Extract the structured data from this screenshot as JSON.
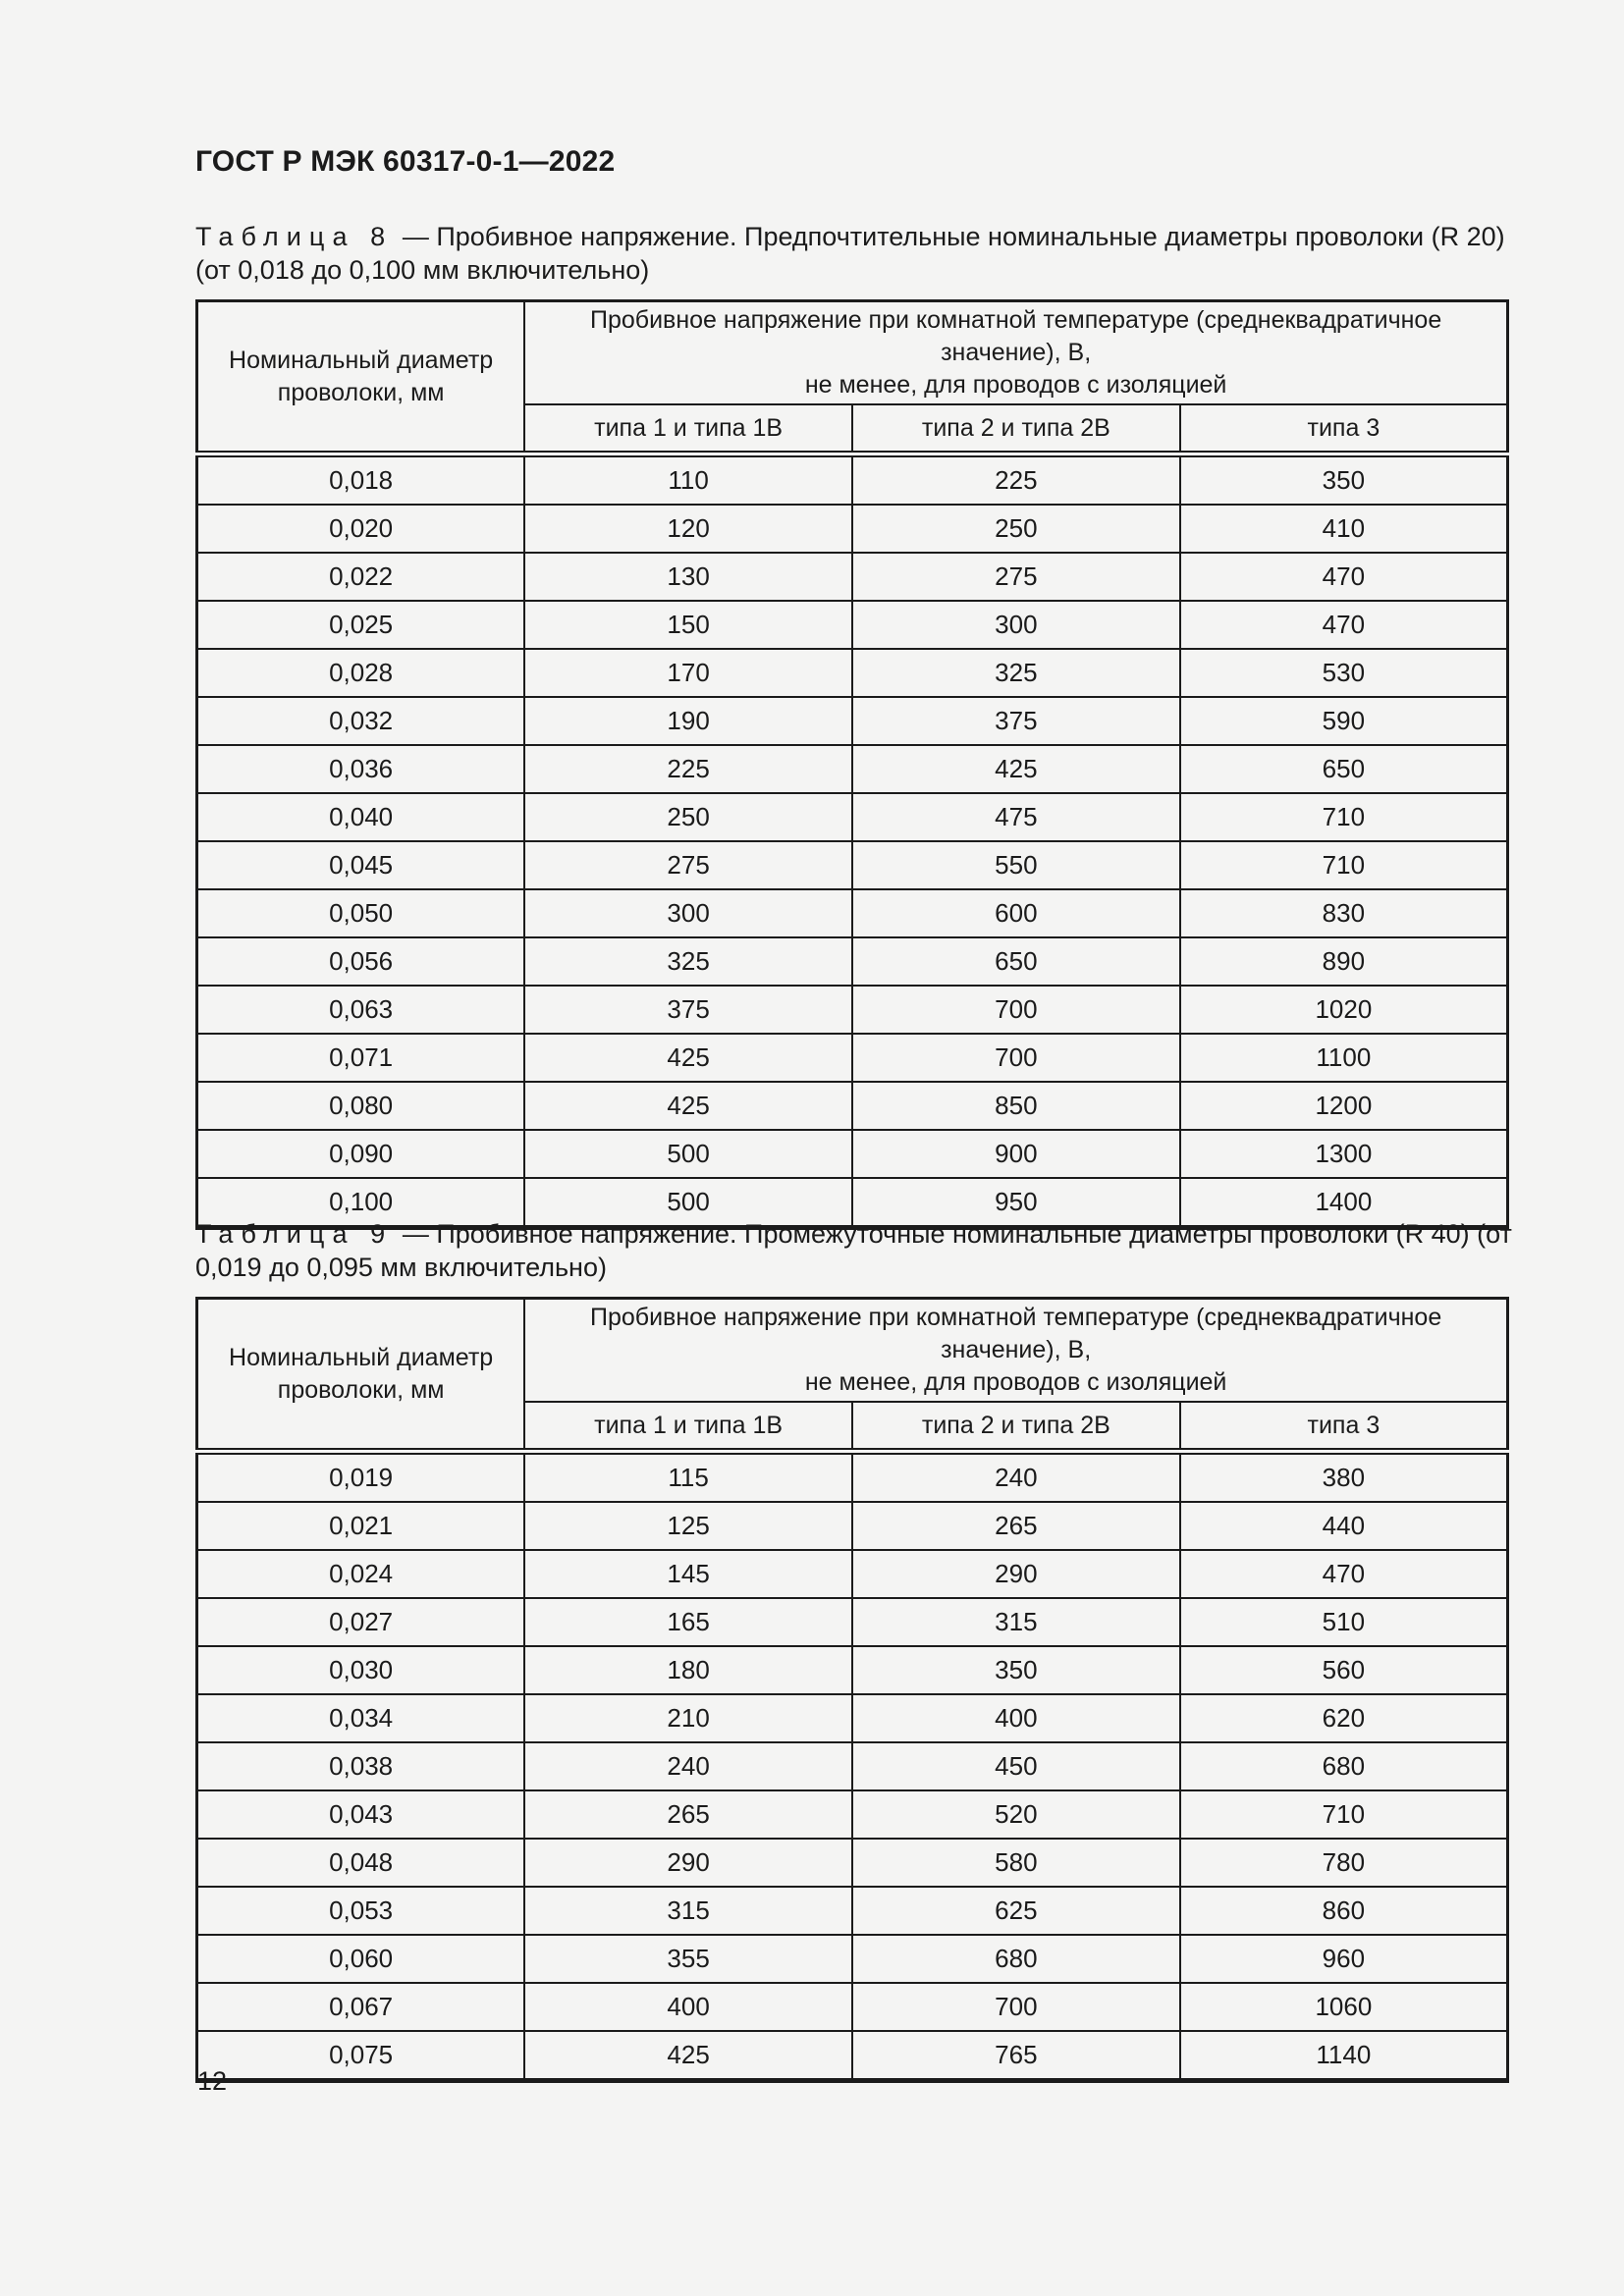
{
  "page": {
    "doc_code": "ГОСТ Р МЭК 60317-0-1—2022",
    "page_number": "12"
  },
  "tables": [
    {
      "caption_label": "Таблица 8",
      "caption_rest": "— Пробивное напряжение. Предпочтительные номинальные диаметры проволоки (R 20) (от 0,018 до 0,100 мм включительно)",
      "col0_header_lines": [
        "Номинальный диаметр",
        "проволоки, мм"
      ],
      "group_header_lines": [
        "Пробивное напряжение при комнатной температуре (среднеквадратичное значение), В,",
        "не менее, для проводов с изоляцией"
      ],
      "sub_headers": [
        "типа 1 и типа 1В",
        "типа 2 и типа 2В",
        "типа 3"
      ],
      "rows": [
        [
          "0,018",
          "110",
          "225",
          "350"
        ],
        [
          "0,020",
          "120",
          "250",
          "410"
        ],
        [
          "0,022",
          "130",
          "275",
          "470"
        ],
        [
          "0,025",
          "150",
          "300",
          "470"
        ],
        [
          "0,028",
          "170",
          "325",
          "530"
        ],
        [
          "0,032",
          "190",
          "375",
          "590"
        ],
        [
          "0,036",
          "225",
          "425",
          "650"
        ],
        [
          "0,040",
          "250",
          "475",
          "710"
        ],
        [
          "0,045",
          "275",
          "550",
          "710"
        ],
        [
          "0,050",
          "300",
          "600",
          "830"
        ],
        [
          "0,056",
          "325",
          "650",
          "890"
        ],
        [
          "0,063",
          "375",
          "700",
          "1020"
        ],
        [
          "0,071",
          "425",
          "700",
          "1100"
        ],
        [
          "0,080",
          "425",
          "850",
          "1200"
        ],
        [
          "0,090",
          "500",
          "900",
          "1300"
        ],
        [
          "0,100",
          "500",
          "950",
          "1400"
        ]
      ]
    },
    {
      "caption_label": "Таблица 9",
      "caption_rest": "— Пробивное напряжение. Промежуточные номинальные диаметры проволоки (R 40) (от 0,019 до 0,095 мм включительно)",
      "col0_header_lines": [
        "Номинальный диаметр",
        "проволоки, мм"
      ],
      "group_header_lines": [
        "Пробивное напряжение при комнатной температуре (среднеквадратичное значение), В,",
        "не менее, для проводов с изоляцией"
      ],
      "sub_headers": [
        "типа 1 и типа 1В",
        "типа 2 и типа 2В",
        "типа 3"
      ],
      "rows": [
        [
          "0,019",
          "115",
          "240",
          "380"
        ],
        [
          "0,021",
          "125",
          "265",
          "440"
        ],
        [
          "0,024",
          "145",
          "290",
          "470"
        ],
        [
          "0,027",
          "165",
          "315",
          "510"
        ],
        [
          "0,030",
          "180",
          "350",
          "560"
        ],
        [
          "0,034",
          "210",
          "400",
          "620"
        ],
        [
          "0,038",
          "240",
          "450",
          "680"
        ],
        [
          "0,043",
          "265",
          "520",
          "710"
        ],
        [
          "0,048",
          "290",
          "580",
          "780"
        ],
        [
          "0,053",
          "315",
          "625",
          "860"
        ],
        [
          "0,060",
          "355",
          "680",
          "960"
        ],
        [
          "0,067",
          "400",
          "700",
          "1060"
        ],
        [
          "0,075",
          "425",
          "765",
          "1140"
        ]
      ]
    }
  ]
}
